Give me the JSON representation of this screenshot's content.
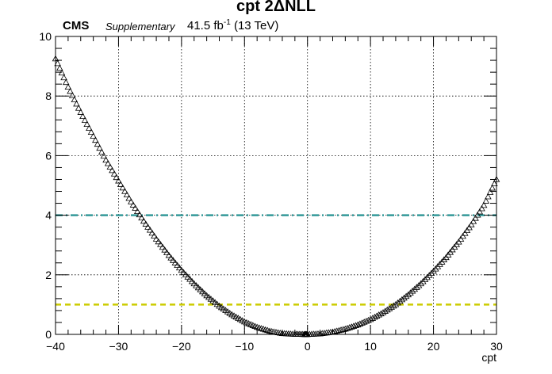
{
  "header": {
    "title": "cpt 2ΔNLL",
    "experiment": "CMS",
    "status": "Supplementary",
    "lumi_value": "41.5 fb",
    "lumi_exponent": "-1",
    "lumi_energy": "(13 TeV)"
  },
  "chart_data": {
    "type": "scatter",
    "title": "cpt 2ΔNLL",
    "xlabel": "cpt",
    "ylabel": "",
    "xlim": [
      -40,
      30
    ],
    "ylim": [
      0,
      10
    ],
    "x_ticks": [
      -40,
      -30,
      -20,
      -10,
      0,
      10,
      20,
      30
    ],
    "y_ticks": [
      0,
      2,
      4,
      6,
      8,
      10
    ],
    "grid": true,
    "marker": "open-triangle",
    "series": [
      {
        "x": [
          -40,
          -38,
          -36,
          -34,
          -32,
          -30,
          -28,
          -26,
          -24,
          -22,
          -20,
          -18,
          -16,
          -14,
          -12,
          -10,
          -8,
          -6,
          -4,
          -2,
          -0.5,
          0,
          2,
          4,
          6,
          8,
          10,
          12,
          14,
          16,
          18,
          20,
          22,
          24,
          26,
          28,
          30
        ],
        "y": [
          9.25,
          8.3,
          7.45,
          6.65,
          5.85,
          5.15,
          4.45,
          3.8,
          3.2,
          2.65,
          2.15,
          1.7,
          1.3,
          0.95,
          0.66,
          0.42,
          0.24,
          0.11,
          0.03,
          0.005,
          0.0,
          0.0,
          0.02,
          0.08,
          0.18,
          0.32,
          0.5,
          0.73,
          1.0,
          1.33,
          1.7,
          2.12,
          2.58,
          3.1,
          3.68,
          4.33,
          5.2
        ]
      }
    ],
    "reference_lines": [
      {
        "y": 4,
        "style": "dash-dot",
        "color": "#339999"
      },
      {
        "y": 1,
        "style": "dashed",
        "color": "#cccc00"
      }
    ]
  }
}
